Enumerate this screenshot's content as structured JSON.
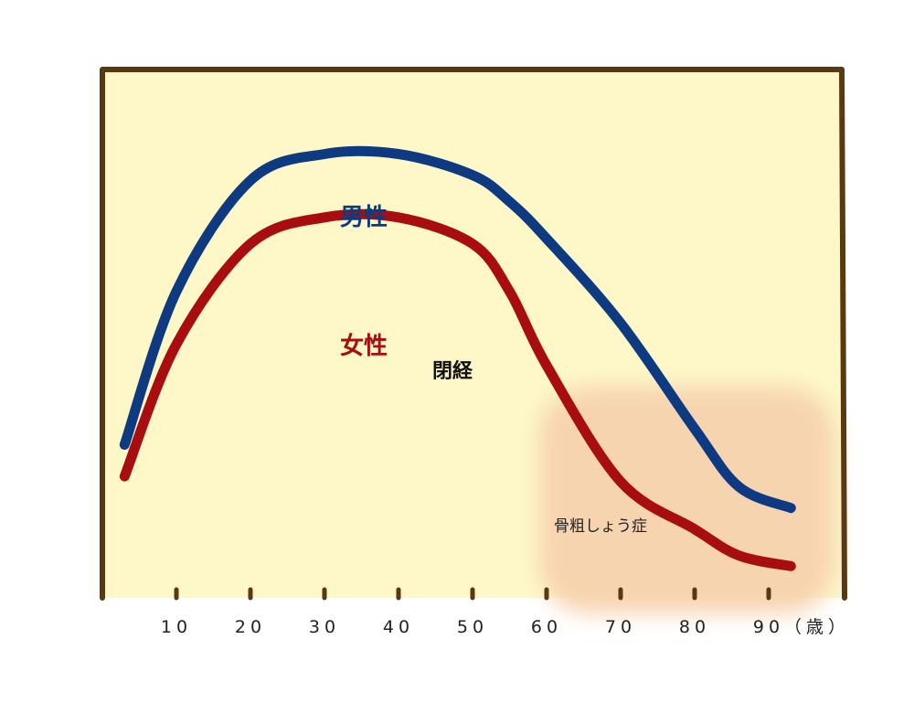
{
  "chart_data": {
    "type": "line",
    "x": [
      3,
      10,
      20,
      30,
      40,
      50,
      55,
      60,
      70,
      80,
      86,
      93
    ],
    "xticks": [
      10,
      20,
      30,
      40,
      50,
      60,
      70,
      80,
      90
    ],
    "xunit": "（歳）",
    "xlim": [
      0,
      100
    ],
    "ylim": [
      0,
      100
    ],
    "grid": false,
    "legend": "inline labels",
    "series": [
      {
        "name": "男性",
        "color": "#0d3a80",
        "values": [
          29,
          58,
          79,
          84,
          84,
          80,
          75,
          68,
          52,
          32,
          21,
          17
        ]
      },
      {
        "name": "女性",
        "color": "#a80d10",
        "values": [
          23,
          48,
          67,
          72,
          72,
          67,
          58,
          44,
          22,
          13,
          8,
          6
        ]
      }
    ],
    "annotations": [
      {
        "text": "閉経",
        "x": 50,
        "y": 54
      },
      {
        "text": "骨粗しょう症",
        "x": 70,
        "y": 13
      }
    ],
    "shaded_region": {
      "label": "骨粗しょう症",
      "x_range": [
        59,
        99
      ],
      "y_range": [
        -3,
        40
      ],
      "color": "#f7d4b0"
    }
  },
  "colors": {
    "plot_background": "#fef8c8",
    "frame": "#5a3810",
    "axis_text": "#222222"
  }
}
